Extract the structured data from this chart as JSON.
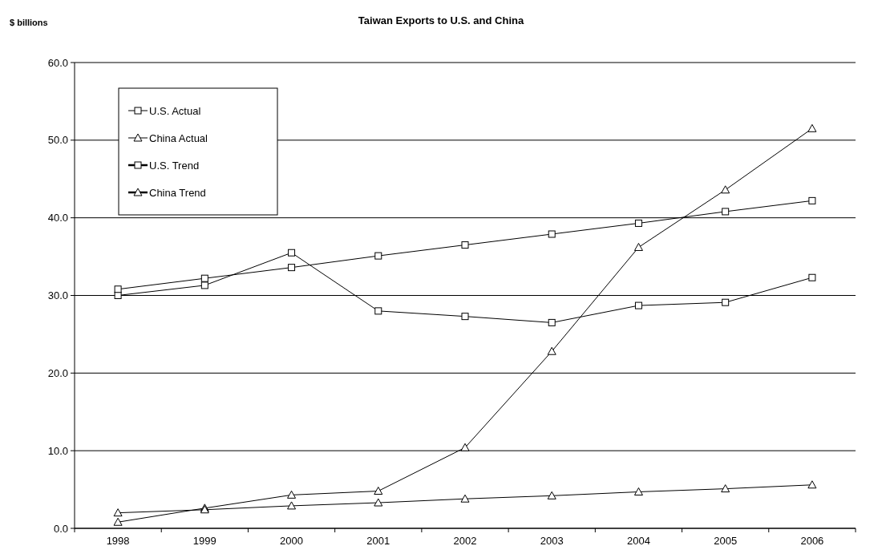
{
  "chart_data": {
    "type": "line",
    "title": "Taiwan Exports to U.S. and China",
    "ylabel": "$ billions",
    "categories": [
      "1998",
      "1999",
      "2000",
      "2001",
      "2002",
      "2003",
      "2004",
      "2005",
      "2006"
    ],
    "ylim": [
      0,
      60
    ],
    "yticks": [
      {
        "value": 0,
        "label": "0.0"
      },
      {
        "value": 10,
        "label": "10.0"
      },
      {
        "value": 20,
        "label": "20.0"
      },
      {
        "value": 30,
        "label": "30.0"
      },
      {
        "value": 40,
        "label": "40.0"
      },
      {
        "value": 50,
        "label": "50.0"
      },
      {
        "value": 60,
        "label": "60.0"
      }
    ],
    "grid": "y",
    "legend": "top left",
    "series": [
      {
        "name": "U.S. Actual",
        "color": "#000000",
        "marker": "square",
        "values": [
          30.0,
          31.3,
          35.5,
          28.0,
          27.3,
          26.5,
          28.7,
          29.1,
          32.3
        ]
      },
      {
        "name": "China Actual",
        "color": "#000000",
        "marker": "triangle",
        "values": [
          0.8,
          2.6,
          4.3,
          4.8,
          10.4,
          22.8,
          36.2,
          43.6,
          51.5
        ]
      },
      {
        "name": "U.S. Trend",
        "color": "#000000",
        "marker": "square",
        "values": [
          30.8,
          32.2,
          33.6,
          35.1,
          36.5,
          37.9,
          39.3,
          40.8,
          42.2
        ]
      },
      {
        "name": "China Trend",
        "color": "#000000",
        "marker": "triangle",
        "values": [
          2.0,
          2.4,
          2.9,
          3.3,
          3.8,
          4.2,
          4.7,
          5.1,
          5.6
        ]
      }
    ]
  }
}
